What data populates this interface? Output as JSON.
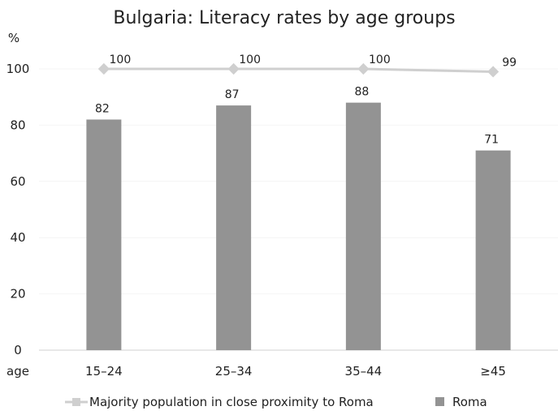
{
  "chart_data": {
    "type": "bar",
    "title": "Bulgaria: Literacy rates by age groups",
    "ylabel": "%",
    "xlabel": "age",
    "categories": [
      "15–24",
      "25–34",
      "35–44",
      "≥45"
    ],
    "ylim": [
      0,
      100
    ],
    "yticks": [
      0,
      20,
      40,
      60,
      80,
      100
    ],
    "grid": false,
    "legend_position": "bottom",
    "series": [
      {
        "name": "Majority population in close proximity to Roma",
        "type": "line",
        "values": [
          100,
          100,
          100,
          99
        ],
        "color": "#cfcfcf"
      },
      {
        "name": "Roma",
        "type": "bar",
        "values": [
          82,
          87,
          88,
          71
        ],
        "color": "#939393"
      }
    ]
  }
}
